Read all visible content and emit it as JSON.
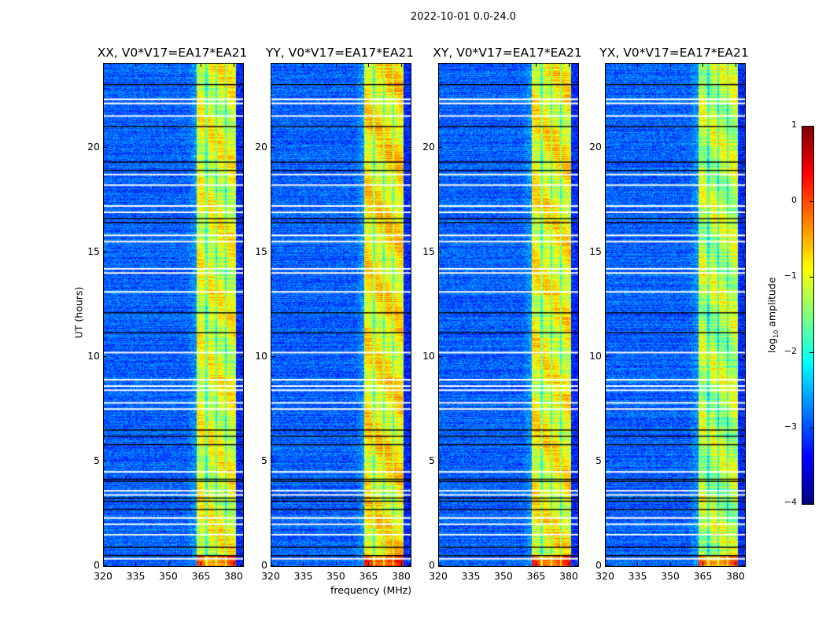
{
  "chart_data": {
    "type": "heatmap",
    "suptitle": "2022-10-01 0.0-24.0",
    "xlabel": "frequency (MHz)",
    "ylabel": "UT (hours)",
    "xlim": [
      320,
      384
    ],
    "ylim": [
      0,
      24
    ],
    "xticks": [
      320,
      335,
      350,
      365,
      380
    ],
    "yticks": [
      0,
      5,
      10,
      15,
      20
    ],
    "panels": [
      {
        "title": "XX, V0*V17=EA17*EA21",
        "band_level": -1.0
      },
      {
        "title": "YY, V0*V17=EA17*EA21",
        "band_level": -0.8
      },
      {
        "title": "XY, V0*V17=EA17*EA21",
        "band_level": -0.9
      },
      {
        "title": "YX, V0*V17=EA17*EA21",
        "band_level": -1.2
      }
    ],
    "background_level": -2.9,
    "bright_band_MHz": [
      362.5,
      380.5
    ],
    "band_dividers_MHz": [
      367,
      371.5,
      376
    ],
    "flagged_hours_white": [
      0.35,
      1.5,
      2.0,
      2.3,
      3.4,
      3.6,
      4.5,
      7.5,
      7.8,
      8.4,
      8.6,
      8.9,
      10.2,
      13.1,
      14.0,
      14.2,
      15.5,
      15.8,
      16.9,
      17.2,
      18.2,
      18.7,
      21.5,
      22.1,
      22.3
    ],
    "flagged_hours_black": [
      0.5,
      0.9,
      2.7,
      3.1,
      3.25,
      4.05,
      4.15,
      5.8,
      6.2,
      6.5,
      11.15,
      12.1,
      16.4,
      16.6,
      18.9,
      19.3,
      21.0,
      23.0
    ],
    "colorbar": {
      "label_prefix": "log",
      "label_sub": "10",
      "label_suffix": " amplitude",
      "range": [
        -4,
        1
      ],
      "ticks": [
        "1",
        "0",
        "−1",
        "−2",
        "−3",
        "−4"
      ],
      "colormap": "jet"
    }
  }
}
